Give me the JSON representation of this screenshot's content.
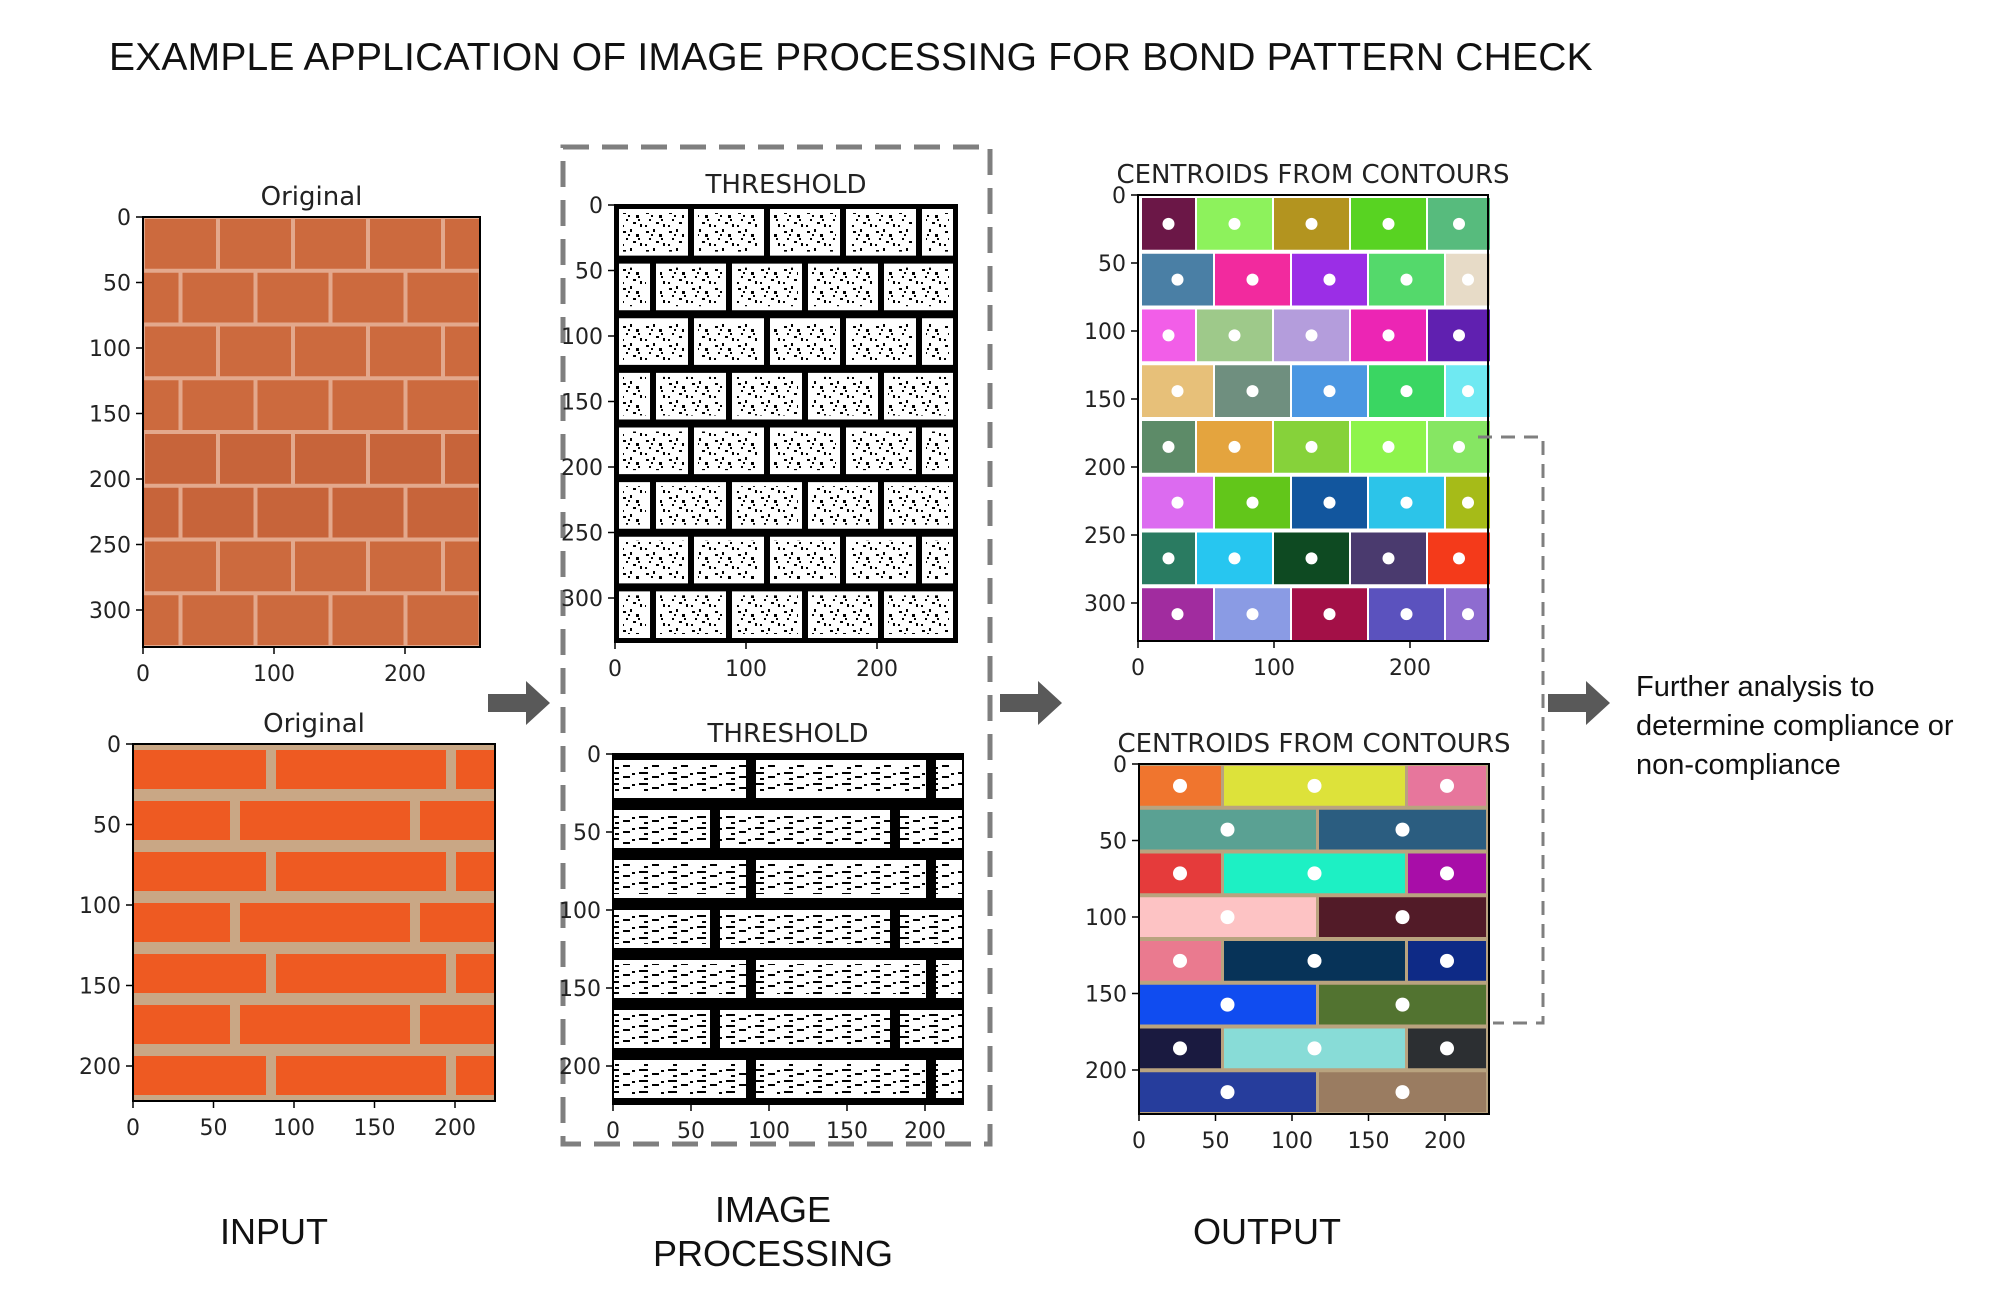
{
  "title": "EXAMPLE APPLICATION OF IMAGE PROCESSING FOR BOND PATTERN CHECK",
  "stages": {
    "input": "INPUT",
    "processing": [
      "IMAGE",
      "PROCESSING"
    ],
    "output": "OUTPUT"
  },
  "further_analysis": [
    "Further analysis to",
    "determine compliance or",
    "non-compliance"
  ],
  "panels": {
    "original_1": {
      "title": "Original",
      "xticks": [
        "0",
        "100",
        "200"
      ],
      "yticks": [
        "0",
        "50",
        "100",
        "150",
        "200",
        "250",
        "300"
      ]
    },
    "original_2": {
      "title": "Original",
      "xticks": [
        "0",
        "50",
        "100",
        "150",
        "200"
      ],
      "yticks": [
        "0",
        "50",
        "100",
        "150",
        "200"
      ]
    },
    "threshold_1": {
      "title": "THRESHOLD",
      "xticks": [
        "0",
        "100",
        "200"
      ],
      "yticks": [
        "0",
        "50",
        "100",
        "150",
        "200",
        "250",
        "300"
      ]
    },
    "threshold_2": {
      "title": "THRESHOLD",
      "xticks": [
        "0",
        "50",
        "100",
        "150",
        "200"
      ],
      "yticks": [
        "0",
        "50",
        "100",
        "150",
        "200"
      ]
    },
    "centroids_1": {
      "title": "CENTROIDS FROM CONTOURS",
      "xticks": [
        "0",
        "100",
        "200"
      ],
      "yticks": [
        "0",
        "50",
        "100",
        "150",
        "200",
        "250",
        "300"
      ]
    },
    "centroids_2": {
      "title": "CENTROIDS FROM CONTOURS",
      "xticks": [
        "0",
        "50",
        "100",
        "150",
        "200"
      ],
      "yticks": [
        "0",
        "50",
        "100",
        "150",
        "200"
      ]
    }
  },
  "colors": {
    "arrow": "#595959",
    "dashed_border": "#7f7f7f",
    "brick_tile": "#cc6a3e",
    "brick_mortar": "#e3a88c",
    "brick_orange": "#ee5a22",
    "brick_sand": "#c9a785"
  },
  "centroid_colors_1": [
    [
      "#6b1747",
      "#8df25c",
      "#b3941f",
      "#58d322",
      "#57bb7d"
    ],
    [
      "#4a7fa5",
      "#f22a9e",
      "#9b2ee6",
      "#54d96b",
      "#e7dbc7"
    ],
    [
      "#f25ee8",
      "#9ec98a",
      "#b49ddc",
      "#ec25b4",
      "#6020b0"
    ],
    [
      "#e7c079",
      "#6f8f7f",
      "#4b97e2",
      "#3ad662",
      "#6fe9f2"
    ],
    [
      "#5d8b68",
      "#e4a43e",
      "#86d23a",
      "#8ef44c",
      "#86e663"
    ],
    [
      "#dc6bf0",
      "#62c61a",
      "#12569e",
      "#2cc4e9",
      "#a6bb18"
    ],
    [
      "#2a7b61",
      "#27c6f0",
      "#0e4a22",
      "#4a3a6e",
      "#f43a1a"
    ],
    [
      "#a12c9f",
      "#8a9be4",
      "#a31047",
      "#5b52be",
      "#8e6cd0"
    ]
  ],
  "centroid_colors_2": [
    [
      "#f0752e",
      "#dde23a",
      "#e7769c"
    ],
    [
      "#5aa193",
      "#2b5d80"
    ],
    [
      "#e53b3b",
      "#1df0c4",
      "#a80da8"
    ],
    [
      "#fdc3c4",
      "#521b28"
    ],
    [
      "#ea7a8f",
      "#073358",
      "#0e2a86"
    ],
    [
      "#104cf0",
      "#527330"
    ],
    [
      "#1a1a40",
      "#88dcd7",
      "#2c2f32"
    ],
    [
      "#263d9c",
      "#9a7c61"
    ]
  ]
}
